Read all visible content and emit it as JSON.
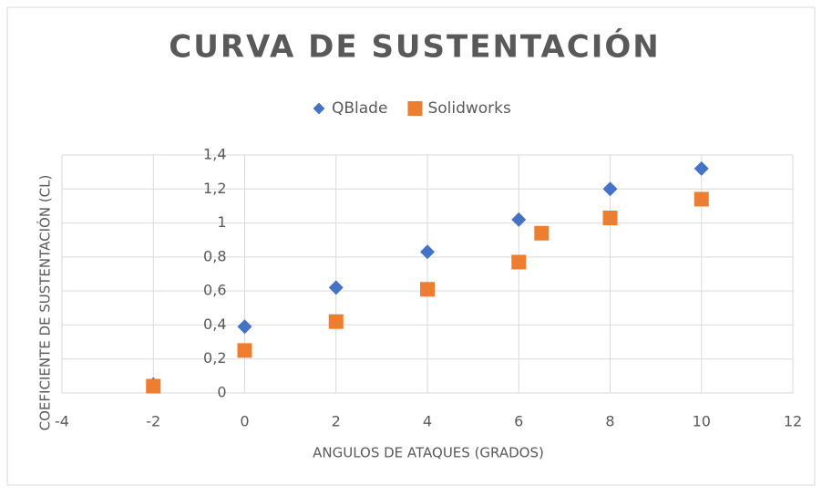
{
  "chart_data": {
    "type": "scatter",
    "title": "CURVA DE SUSTENTACIÓN",
    "xlabel": "ANGULOS DE ATAQUES (GRADOS)",
    "ylabel": "COEFICIENTE DE SUSTENTACIÓN (CL)",
    "xlim": [
      -4,
      12
    ],
    "xticks": [
      -4,
      -2,
      0,
      2,
      4,
      6,
      8,
      10,
      12
    ],
    "ylim": [
      0,
      1.4
    ],
    "yticks": [
      0,
      {
        "value": 0.2,
        "label": "0,2"
      },
      {
        "value": 0.4,
        "label": "0,4"
      },
      {
        "value": 0.6,
        "label": "0,6"
      },
      {
        "value": 0.8,
        "label": "0,8"
      },
      1,
      {
        "value": 1.2,
        "label": "1,2"
      },
      {
        "value": 1.4,
        "label": "1,4"
      }
    ],
    "grid": true,
    "legend": "top",
    "series": [
      {
        "name": "QBlade",
        "color": "#4472c4",
        "marker": "diamond",
        "x": [
          -2,
          0,
          2,
          4,
          6,
          8,
          10
        ],
        "values": [
          0.05,
          0.39,
          0.62,
          0.83,
          1.02,
          1.2,
          1.32
        ]
      },
      {
        "name": "Solidworks",
        "color": "#ed7d31",
        "marker": "square",
        "x": [
          -2,
          0,
          2,
          4,
          6,
          6.5,
          8,
          10
        ],
        "values": [
          0.04,
          0.25,
          0.42,
          0.61,
          0.77,
          0.94,
          1.03,
          1.14
        ]
      }
    ]
  }
}
